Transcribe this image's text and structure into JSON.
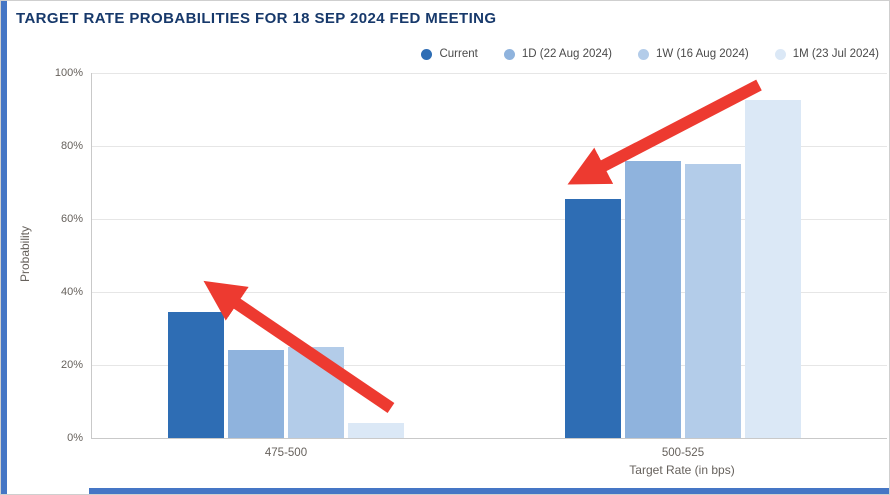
{
  "page": {
    "title": "TARGET RATE PROBABILITIES FOR 18 SEP 2024 FED MEETING"
  },
  "legend": {
    "items": [
      {
        "label": "Current",
        "color": "#2e6db4"
      },
      {
        "label": "1D (22 Aug 2024)",
        "color": "#8fb3dd"
      },
      {
        "label": "1W (16 Aug 2024)",
        "color": "#b3cce9"
      },
      {
        "label": "1M (23 Jul 2024)",
        "color": "#dbe8f6"
      }
    ]
  },
  "chart_data": {
    "type": "bar",
    "title": "TARGET RATE PROBABILITIES FOR 18 SEP 2024 FED MEETING",
    "categories": [
      "475-500",
      "500-525"
    ],
    "series": [
      {
        "name": "Current",
        "color": "#2e6db4",
        "values": [
          34.5,
          65.5
        ]
      },
      {
        "name": "1D (22 Aug 2024)",
        "color": "#8fb3dd",
        "values": [
          24,
          76
        ]
      },
      {
        "name": "1W (16 Aug 2024)",
        "color": "#b3cce9",
        "values": [
          25,
          75
        ]
      },
      {
        "name": "1M (23 Jul 2024)",
        "color": "#dbe8f6",
        "values": [
          4,
          92.5
        ]
      }
    ],
    "xlabel": "Target Rate (in bps)",
    "ylabel": "Probability",
    "ylim": [
      0,
      100
    ],
    "ytick_labels": [
      "0%",
      "20%",
      "40%",
      "60%",
      "80%",
      "100%"
    ],
    "grid": true,
    "legend_position": "top-right",
    "annotations": [
      {
        "type": "arrow",
        "color": "#ed3a30",
        "from_xy": [
          390,
          407
        ],
        "to_xy": [
          216,
          289
        ],
        "points_to": "Current bar of 475-500"
      },
      {
        "type": "arrow",
        "color": "#ed3a30",
        "from_xy": [
          758,
          84
        ],
        "to_xy": [
          581,
          176
        ],
        "points_to": "Current bar of 500-525"
      }
    ]
  }
}
